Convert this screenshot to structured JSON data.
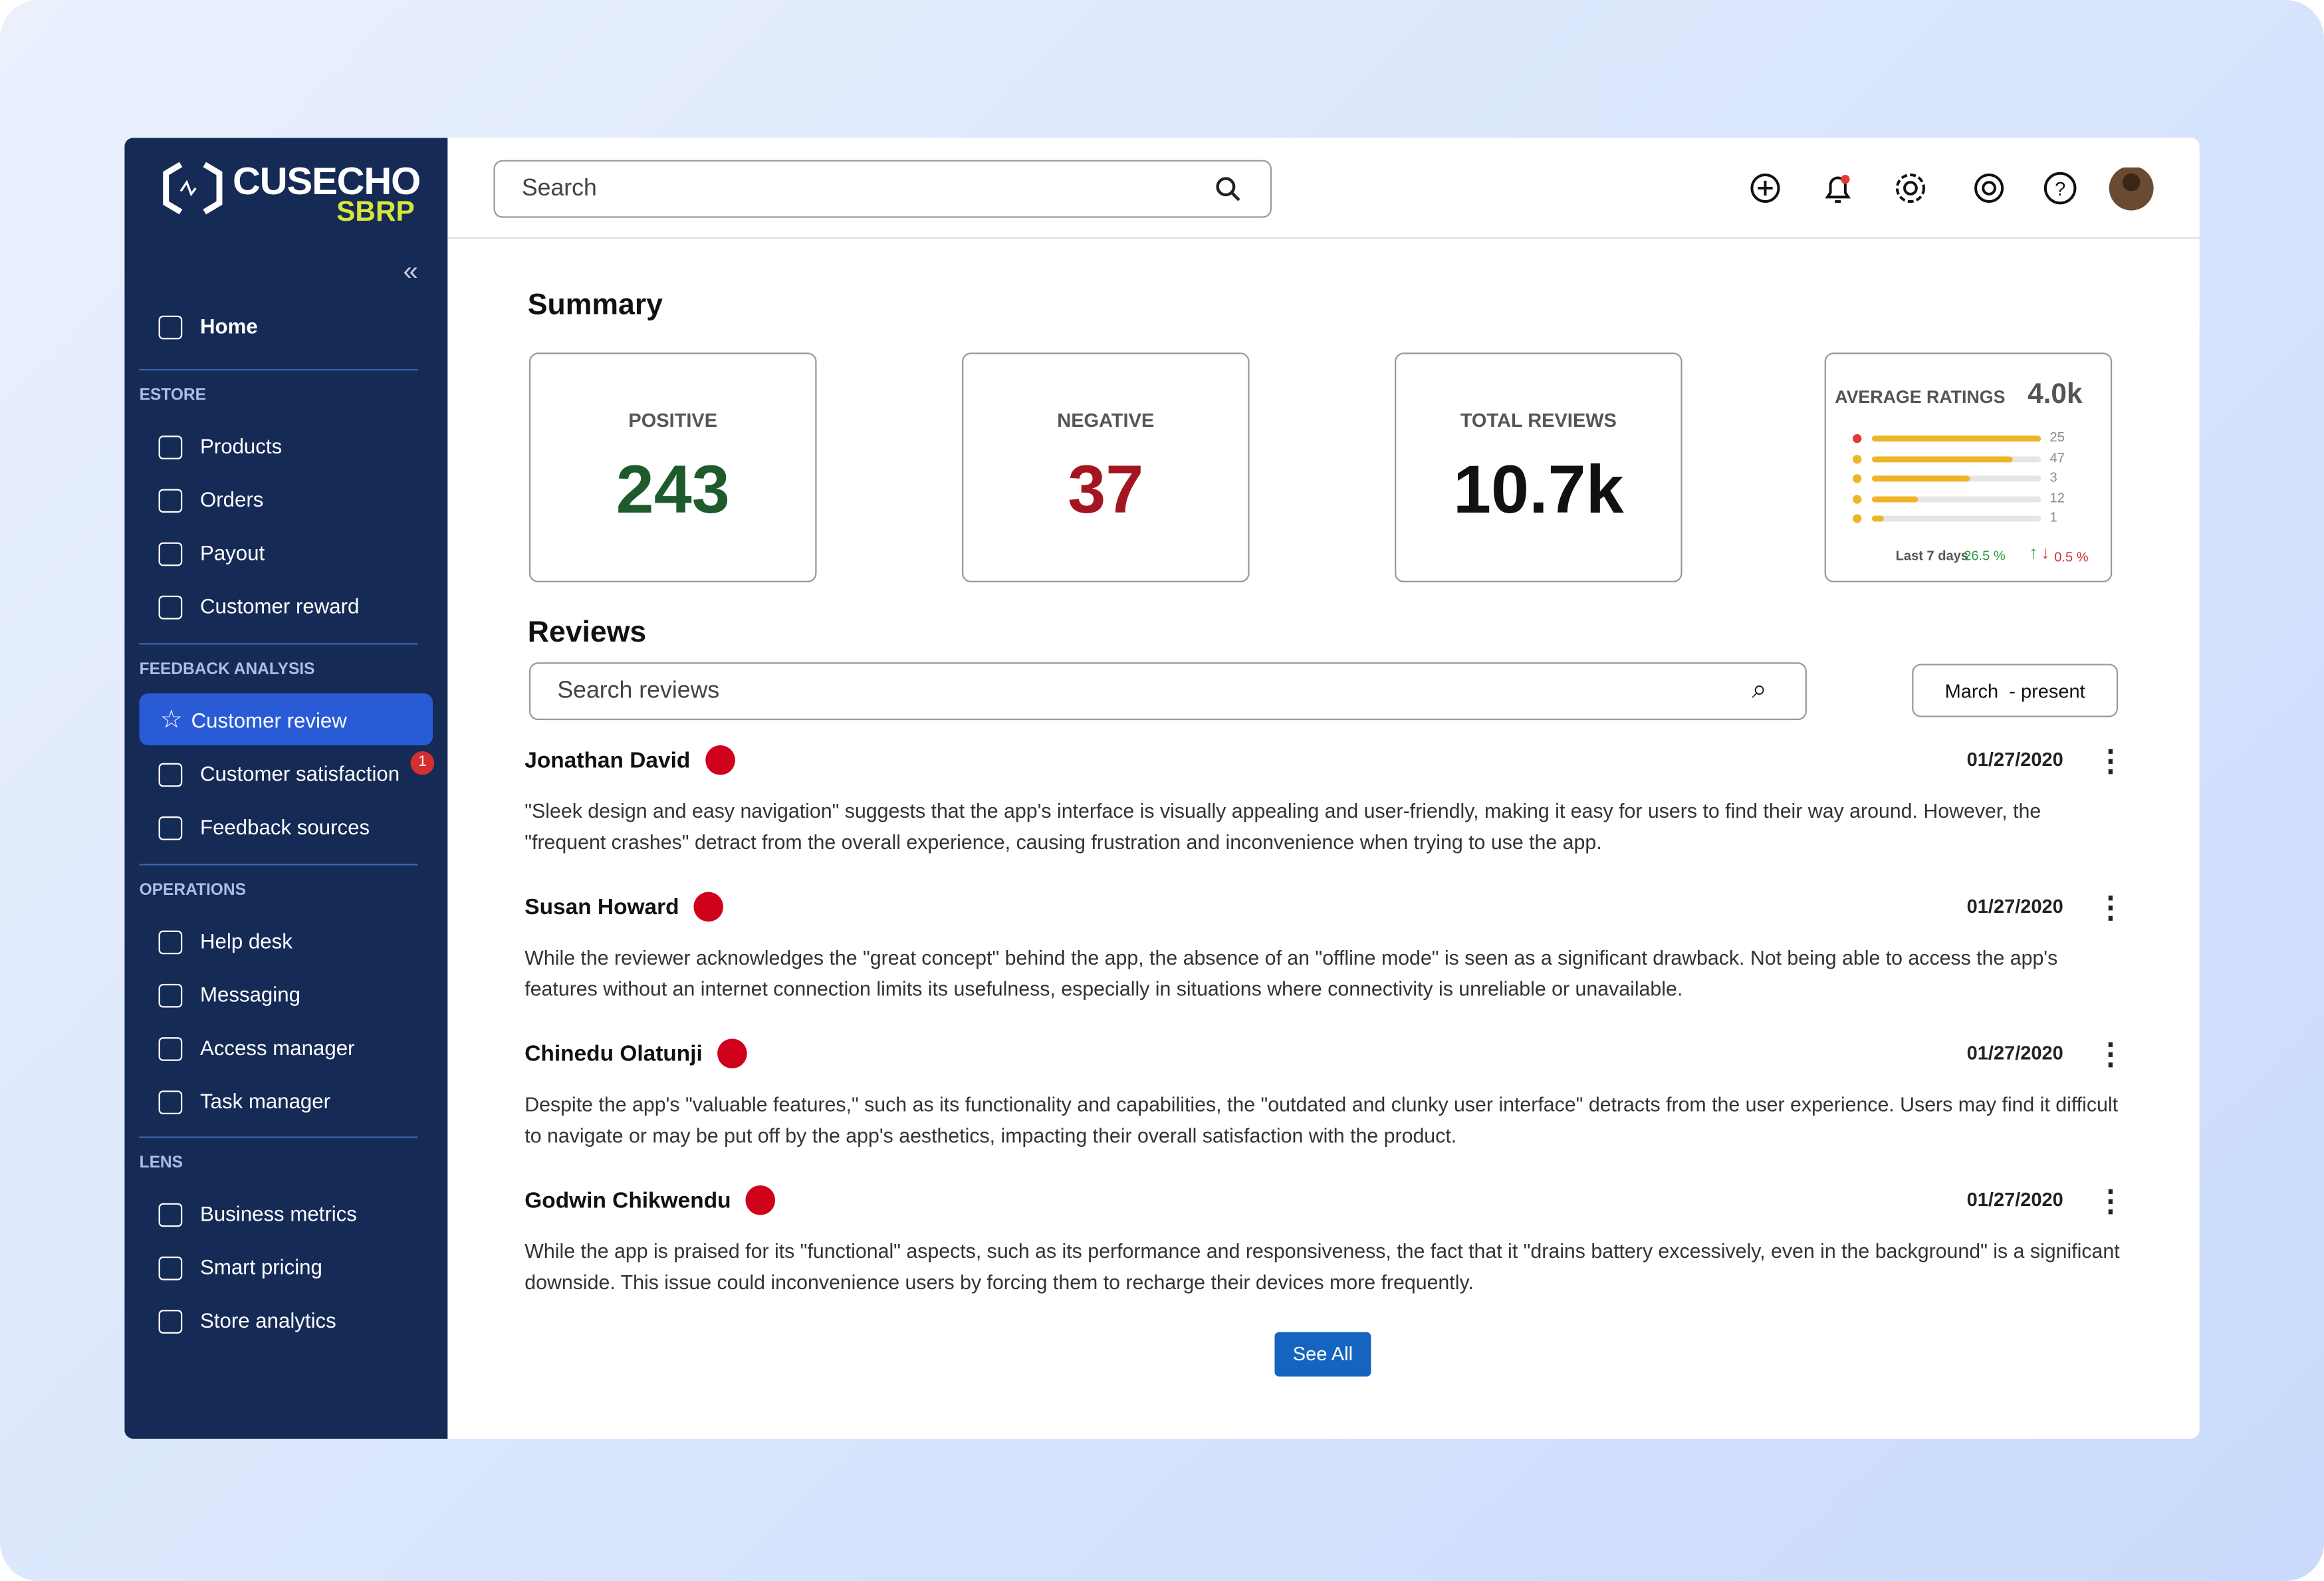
{
  "brand": {
    "name": "CUSECHO",
    "sub": "SBRP"
  },
  "sidebar": {
    "home": "Home",
    "sections": [
      {
        "title": "ESTORE",
        "items": [
          "Products",
          "Orders",
          "Payout",
          "Customer reward"
        ]
      },
      {
        "title": "FEEDBACK ANALYSIS",
        "items": [
          "Customer review",
          "Customer satisfaction",
          "Feedback sources"
        ]
      },
      {
        "title": "OPERATIONS",
        "items": [
          "Help desk",
          "Messaging",
          "Access manager",
          "Task manager"
        ]
      },
      {
        "title": "LENS",
        "items": [
          "Business metrics",
          "Smart pricing",
          "Store analytics"
        ]
      }
    ],
    "badge": "1"
  },
  "topbar": {
    "search": "Search"
  },
  "summary": {
    "title": "Summary",
    "cards": [
      {
        "label": "POSITIVE",
        "value": "243"
      },
      {
        "label": "NEGATIVE",
        "value": "37"
      },
      {
        "label": "TOTAL REVIEWS",
        "value": "10.7k"
      }
    ],
    "ratings": {
      "title": "AVERAGE RATINGS",
      "value": "4.0k",
      "counts": [
        "25",
        "47",
        "3",
        "12",
        "1"
      ],
      "period": "Last 7 days",
      "up": "26.5 %",
      "down": "0.5 %"
    }
  },
  "reviews": {
    "title": "Reviews",
    "search": "Search reviews",
    "range": "March  - present",
    "button": "See All",
    "items": [
      {
        "name": "Jonathan David",
        "date": "01/27/2020",
        "text": "\"Sleek design and easy navigation\" suggests that the app's interface is visually appealing and user-friendly, making it easy for users to find their way around. However, the \"frequent crashes\" detract from the overall experience, causing frustration and inconvenience when trying to use the app."
      },
      {
        "name": "Susan Howard",
        "date": "01/27/2020",
        "text": "While the reviewer acknowledges the \"great concept\" behind the app, the absence of an \"offline mode\" is seen as a significant drawback. Not being able to access the app's features without an internet connection limits its usefulness, especially in situations where connectivity is unreliable or unavailable."
      },
      {
        "name": "Chinedu Olatunji",
        "date": "01/27/2020",
        "text": "Despite the app's \"valuable features,\" such as its functionality and capabilities, the \"outdated and clunky user interface\" detracts from the user experience. Users may find it difficult to navigate or may be put off by the app's aesthetics, impacting their overall satisfaction with the product."
      },
      {
        "name": "Godwin Chikwendu",
        "date": "01/27/2020",
        "text": "While the app is praised for its \"functional\" aspects, such as its performance and responsiveness, the fact that it \"drains battery excessively, even in the background\" is a significant downside. This issue could inconvenience users by forcing them to recharge their devices more frequently."
      }
    ]
  }
}
